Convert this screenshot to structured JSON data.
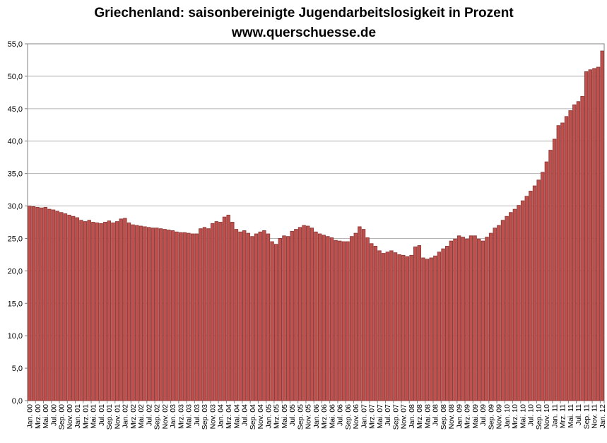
{
  "title": {
    "line1": "Griechenland: saisonbereinigte Jugendarbeitslosigkeit in Prozent",
    "line2": "www.querschuesse.de"
  },
  "chart_data": {
    "type": "bar",
    "title": "Griechenland: saisonbereinigte Jugendarbeitslosigkeit in Prozent",
    "subtitle": "www.querschuesse.de",
    "xlabel": "",
    "ylabel": "",
    "ylim": [
      0,
      55
    ],
    "ytick_step": 5,
    "grid": true,
    "legend": false,
    "decimal_separator": ",",
    "series_start": "Jan 2000",
    "series_end": "Jan 2012",
    "series_frequency": "monthly",
    "bar_color": "#c0504d",
    "bar_border_color": "#8c3a37",
    "grid_color": "#b3b3b3",
    "frame_color": "#808080",
    "ytick_labels": [
      "0,0",
      "5,0",
      "10,0",
      "15,0",
      "20,0",
      "25,0",
      "30,0",
      "35,0",
      "40,0",
      "45,0",
      "50,0",
      "55,0"
    ],
    "x_tick_labels": [
      "Jan. 00",
      "Mrz. 00",
      "Mai. 00",
      "Jul. 00",
      "Sep. 00",
      "Nov. 00",
      "Jan. 01",
      "Mrz. 01",
      "Mai. 01",
      "Jul. 01",
      "Sep. 01",
      "Nov. 01",
      "Jan. 02",
      "Mrz. 02",
      "Mai. 02",
      "Jul. 02",
      "Sep. 02",
      "Nov. 02",
      "Jan. 03",
      "Mrz. 03",
      "Mai. 03",
      "Jul. 03",
      "Sep. 03",
      "Nov. 03",
      "Jan. 04",
      "Mrz. 04",
      "Mai. 04",
      "Jul. 04",
      "Sep. 04",
      "Nov. 04",
      "Jan. 05",
      "Mrz. 05",
      "Mai. 05",
      "Jul. 05",
      "Sep. 05",
      "Nov. 05",
      "Jan. 06",
      "Mrz. 06",
      "Mai. 06",
      "Jul. 06",
      "Sep. 06",
      "Nov. 06",
      "Jan. 07",
      "Mrz. 07",
      "Mai. 07",
      "Jul. 07",
      "Sep. 07",
      "Nov. 07",
      "Jan. 08",
      "Mrz. 08",
      "Mai. 08",
      "Jul. 08",
      "Sep. 08",
      "Nov. 08",
      "Jan. 09",
      "Mrz. 09",
      "Mai. 09",
      "Jul. 09",
      "Sep. 09",
      "Nov. 09",
      "Jan. 10",
      "Mrz. 10",
      "Mai. 10",
      "Jul. 10",
      "Sep. 10",
      "Nov. 10",
      "Jan. 11",
      "Mrz. 11",
      "Mai. 11",
      "Jul. 11",
      "Sep. 11",
      "Nov. 11",
      "Jan. 12"
    ],
    "values": [
      30.0,
      29.9,
      29.8,
      29.7,
      29.8,
      29.5,
      29.4,
      29.2,
      29.0,
      28.8,
      28.6,
      28.4,
      28.2,
      27.8,
      27.6,
      27.8,
      27.5,
      27.4,
      27.3,
      27.5,
      27.7,
      27.4,
      27.6,
      28.0,
      28.1,
      27.4,
      27.1,
      27.0,
      26.9,
      26.8,
      26.7,
      26.6,
      26.6,
      26.5,
      26.4,
      26.3,
      26.2,
      26.0,
      25.9,
      25.9,
      25.8,
      25.7,
      25.7,
      26.5,
      26.7,
      26.5,
      27.3,
      27.6,
      27.5,
      28.3,
      28.6,
      27.5,
      26.4,
      26.0,
      26.2,
      25.8,
      25.3,
      25.7,
      26.0,
      26.2,
      25.7,
      24.5,
      24.1,
      25.0,
      25.4,
      25.3,
      26.1,
      26.4,
      26.7,
      27.0,
      26.9,
      26.6,
      26.0,
      25.7,
      25.5,
      25.3,
      25.1,
      24.7,
      24.6,
      24.5,
      24.5,
      25.3,
      25.8,
      26.8,
      26.4,
      25.1,
      24.2,
      23.8,
      23.1,
      22.7,
      22.9,
      23.1,
      22.8,
      22.5,
      22.4,
      22.2,
      22.4,
      23.7,
      23.9,
      22.0,
      21.8,
      22.0,
      22.3,
      22.9,
      23.4,
      23.8,
      24.6,
      24.9,
      25.4,
      25.2,
      24.9,
      25.4,
      25.4,
      24.9,
      24.6,
      25.2,
      25.8,
      26.6,
      27.0,
      27.8,
      28.4,
      29.0,
      29.5,
      30.1,
      30.8,
      31.5,
      32.3,
      33.1,
      34.0,
      35.2,
      36.8,
      38.6,
      40.3,
      42.4,
      42.8,
      43.8,
      44.7,
      45.6,
      46.1,
      46.9,
      50.7,
      51.0,
      51.2,
      51.4,
      53.9
    ]
  }
}
